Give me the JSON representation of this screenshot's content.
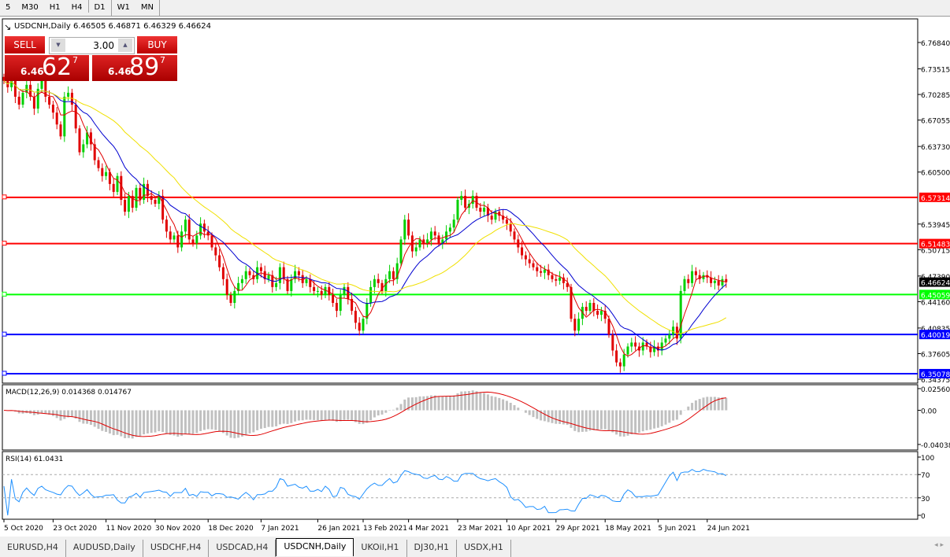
{
  "toolbar": {
    "timeframes": [
      "5",
      "M30",
      "H1",
      "H4",
      "D1",
      "W1",
      "MN"
    ],
    "active": "D1"
  },
  "chart_header": {
    "title": "USDCNH,Daily 6.46505 6.46871 6.46329 6.46624"
  },
  "trade_panel": {
    "sell_label": "SELL",
    "buy_label": "BUY",
    "lot": "3.00",
    "sell_prefix": "6.46",
    "sell_big": "62",
    "sell_pip": "7",
    "buy_prefix": "6.46",
    "buy_big": "89",
    "buy_pip": "7"
  },
  "colors": {
    "bull": "#00d000",
    "bear": "#e00000",
    "ma_fast": "#e00000",
    "ma_mid": "#0000d0",
    "ma_slow": "#f0e000"
  },
  "chart_data": {
    "type": "candlestick",
    "price_axis": {
      "ylim": [
        6.34375,
        6.7865
      ],
      "ticks": [
        "6.76840",
        "6.73515",
        "6.70285",
        "6.67055",
        "6.63730",
        "6.60500",
        "6.53945",
        "6.50715",
        "6.47390",
        "6.44160",
        "6.40835",
        "6.37605",
        "6.34375"
      ]
    },
    "current_price": "6.46624",
    "levels": [
      {
        "price": 6.57314,
        "label": "6.57314",
        "color": "#ff0000"
      },
      {
        "price": 6.51483,
        "label": "6.51483",
        "color": "#ff0000"
      },
      {
        "price": 6.45059,
        "label": "6.45059",
        "color": "#00ff00"
      },
      {
        "price": 6.40019,
        "label": "6.40019",
        "color": "#0000ff"
      },
      {
        "price": 6.35078,
        "label": "6.35078",
        "color": "#0000ff"
      }
    ],
    "date_labels": [
      {
        "i": 0,
        "t": "5 Oct 2020"
      },
      {
        "i": 13,
        "t": "23 Oct 2020"
      },
      {
        "i": 27,
        "t": "11 Nov 2020"
      },
      {
        "i": 40,
        "t": "30 Nov 2020"
      },
      {
        "i": 54,
        "t": "18 Dec 2020"
      },
      {
        "i": 68,
        "t": "7 Jan 2021"
      },
      {
        "i": 83,
        "t": "26 Jan 2021"
      },
      {
        "i": 95,
        "t": "13 Feb 2021"
      },
      {
        "i": 107,
        "t": "4 Mar 2021"
      },
      {
        "i": 120,
        "t": "23 Mar 2021"
      },
      {
        "i": 133,
        "t": "10 Apr 2021"
      },
      {
        "i": 146,
        "t": "29 Apr 2021"
      },
      {
        "i": 159,
        "t": "18 May 2021"
      },
      {
        "i": 173,
        "t": "5 Jun 2021"
      },
      {
        "i": 186,
        "t": "24 Jun 2021"
      }
    ],
    "closes": [
      6.72,
      6.712,
      6.725,
      6.7,
      6.69,
      6.705,
      6.715,
      6.7,
      6.685,
      6.71,
      6.72,
      6.7,
      6.69,
      6.68,
      6.665,
      6.65,
      6.7,
      6.705,
      6.69,
      6.66,
      6.63,
      6.64,
      6.655,
      6.64,
      6.62,
      6.61,
      6.6,
      6.605,
      6.59,
      6.58,
      6.6,
      6.57,
      6.555,
      6.575,
      6.56,
      6.585,
      6.57,
      6.59,
      6.575,
      6.57,
      6.565,
      6.575,
      6.545,
      6.53,
      6.52,
      6.525,
      6.51,
      6.53,
      6.545,
      6.52,
      6.515,
      6.525,
      6.54,
      6.53,
      6.525,
      6.51,
      6.5,
      6.485,
      6.47,
      6.45,
      6.44,
      6.455,
      6.465,
      6.47,
      6.48,
      6.475,
      6.47,
      6.485,
      6.48,
      6.47,
      6.475,
      6.46,
      6.465,
      6.485,
      6.47,
      6.455,
      6.47,
      6.48,
      6.475,
      6.465,
      6.47,
      6.46,
      6.455,
      6.455,
      6.45,
      6.46,
      6.45,
      6.44,
      6.43,
      6.45,
      6.46,
      6.445,
      6.43,
      6.415,
      6.405,
      6.42,
      6.44,
      6.46,
      6.47,
      6.465,
      6.455,
      6.47,
      6.48,
      6.47,
      6.49,
      6.52,
      6.545,
      6.525,
      6.505,
      6.51,
      6.52,
      6.515,
      6.52,
      6.53,
      6.525,
      6.515,
      6.52,
      6.53,
      6.535,
      6.545,
      6.57,
      6.575,
      6.56,
      6.565,
      6.575,
      6.56,
      6.555,
      6.56,
      6.55,
      6.545,
      6.555,
      6.55,
      6.545,
      6.54,
      6.53,
      6.52,
      6.51,
      6.5,
      6.495,
      6.49,
      6.485,
      6.48,
      6.478,
      6.482,
      6.475,
      6.47,
      6.468,
      6.472,
      6.465,
      6.46,
      6.42,
      6.405,
      6.42,
      6.435,
      6.43,
      6.44,
      6.43,
      6.425,
      6.43,
      6.42,
      6.4,
      6.38,
      6.365,
      6.36,
      6.375,
      6.385,
      6.39,
      6.385,
      6.38,
      6.39,
      6.385,
      6.378,
      6.385,
      6.38,
      6.39,
      6.395,
      6.4,
      6.41,
      6.395,
      6.455,
      6.47,
      6.465,
      6.48,
      6.475,
      6.47,
      6.475,
      6.472,
      6.465,
      6.468,
      6.462,
      6.47,
      6.46624
    ],
    "macd": {
      "label": "MACD(12,26,9) 0.014368 0.014767",
      "ylim": [
        -0.04038,
        0.025609
      ],
      "ticks": [
        "0.025609",
        "0.00",
        "-0.04038"
      ]
    },
    "rsi": {
      "label": "RSI(14) 61.0431",
      "ylim": [
        0,
        100
      ],
      "ticks": [
        "100",
        "70",
        "30",
        "0"
      ],
      "levels": [
        70,
        30
      ]
    }
  },
  "tabs": [
    {
      "label": "EURUSD,H4"
    },
    {
      "label": "AUDUSD,Daily"
    },
    {
      "label": "USDCHF,H4"
    },
    {
      "label": "USDCAD,H4"
    },
    {
      "label": "USDCNH,Daily",
      "active": true
    },
    {
      "label": "UKOil,H1"
    },
    {
      "label": "DJ30,H1"
    },
    {
      "label": "USDX,H1"
    }
  ]
}
